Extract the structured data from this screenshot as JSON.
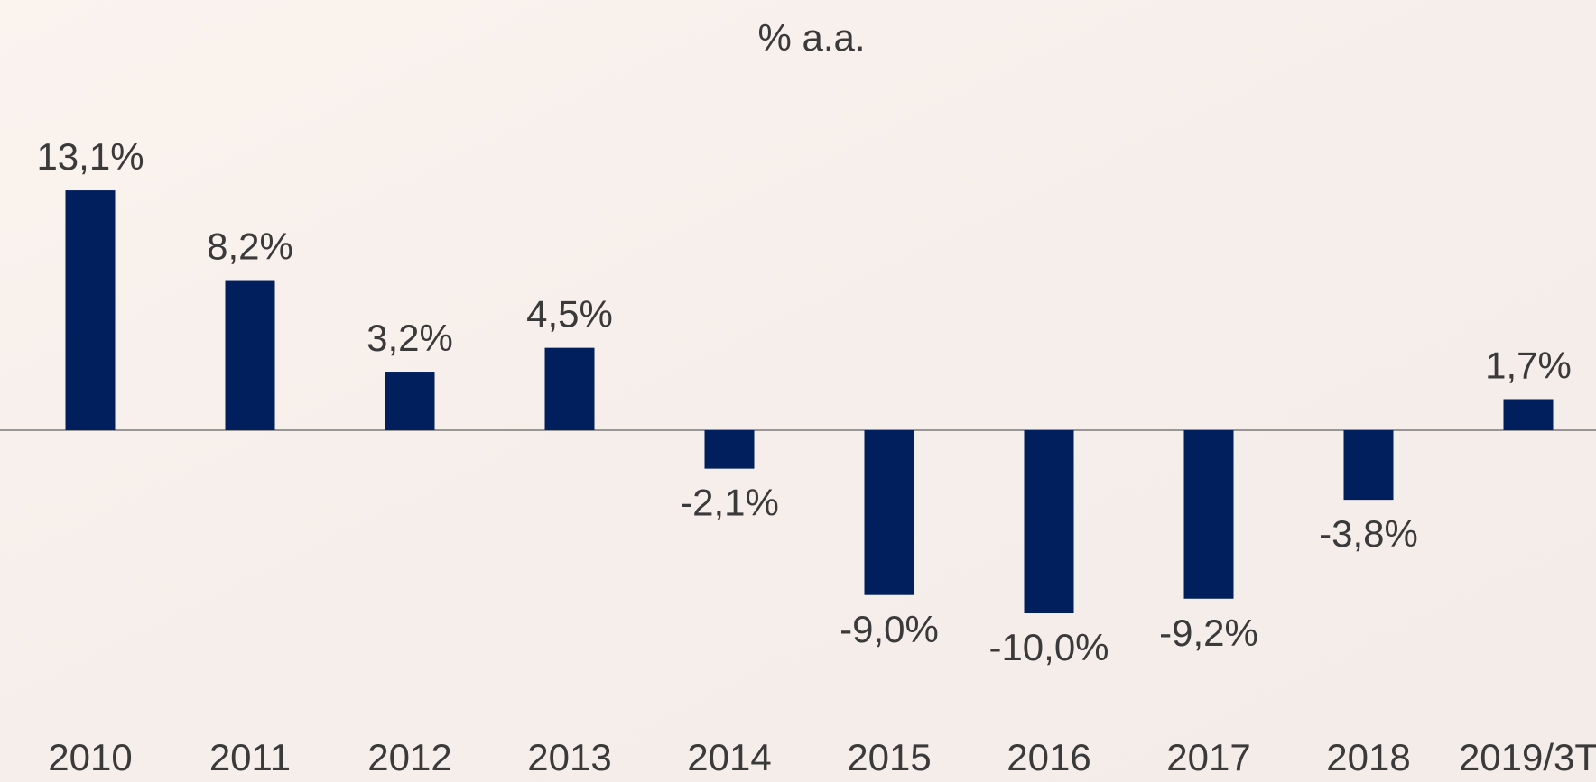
{
  "chart_data": {
    "type": "bar",
    "title": "% a.a.",
    "categories": [
      "2010",
      "2011",
      "2012",
      "2013",
      "2014",
      "2015",
      "2016",
      "2017",
      "2018",
      "2019/3T"
    ],
    "values": [
      13.1,
      8.2,
      3.2,
      4.5,
      -2.1,
      -9.0,
      -10.0,
      -9.2,
      -3.8,
      1.7
    ],
    "value_labels": [
      "13,1%",
      "8,2%",
      "3,2%",
      "4,5%",
      "-2,1%",
      "-9,0%",
      "-10,0%",
      "-9,2%",
      "-3,8%",
      "1,7%"
    ],
    "color": "#001f5c",
    "ylim": [
      -12,
      15
    ]
  }
}
